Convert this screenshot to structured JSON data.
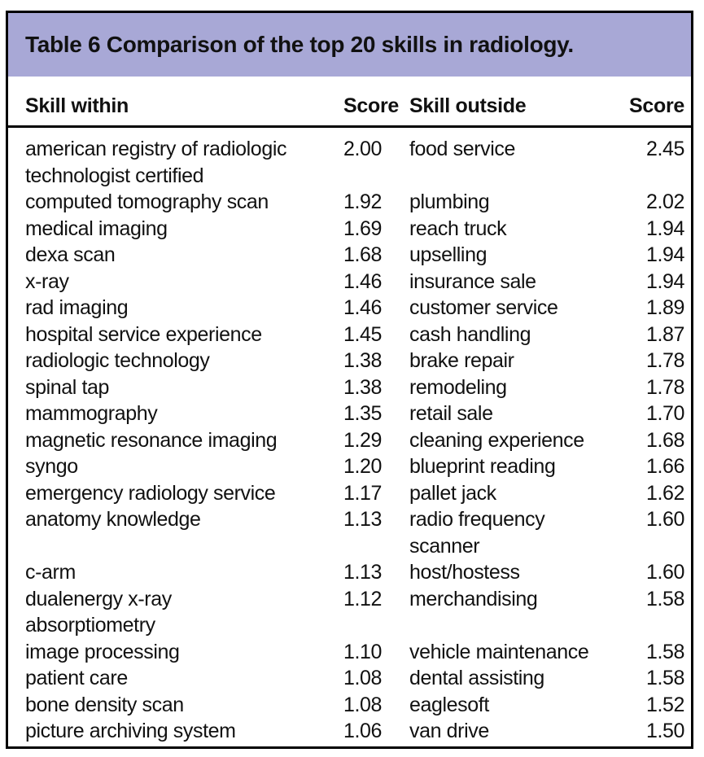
{
  "table": {
    "title": "Table 6 Comparison of the top 20 skills in radiology.",
    "columns": [
      "Skill within",
      "Score",
      "Skill outside",
      "Score"
    ],
    "rows": [
      {
        "skill_within": "american registry of radiologic\ntechnologist certified",
        "score_within": "2.00",
        "skill_outside": "food service",
        "score_outside": "2.45"
      },
      {
        "skill_within": "computed tomography scan",
        "score_within": "1.92",
        "skill_outside": "plumbing",
        "score_outside": "2.02"
      },
      {
        "skill_within": "medical imaging",
        "score_within": "1.69",
        "skill_outside": "reach truck",
        "score_outside": "1.94"
      },
      {
        "skill_within": "dexa scan",
        "score_within": "1.68",
        "skill_outside": "upselling",
        "score_outside": "1.94"
      },
      {
        "skill_within": "x-ray",
        "score_within": "1.46",
        "skill_outside": "insurance sale",
        "score_outside": "1.94"
      },
      {
        "skill_within": "rad imaging",
        "score_within": "1.46",
        "skill_outside": "customer service",
        "score_outside": "1.89"
      },
      {
        "skill_within": "hospital service experience",
        "score_within": "1.45",
        "skill_outside": "cash handling",
        "score_outside": "1.87"
      },
      {
        "skill_within": "radiologic technology",
        "score_within": "1.38",
        "skill_outside": "brake repair",
        "score_outside": "1.78"
      },
      {
        "skill_within": "spinal tap",
        "score_within": "1.38",
        "skill_outside": "remodeling",
        "score_outside": "1.78"
      },
      {
        "skill_within": "mammography",
        "score_within": "1.35",
        "skill_outside": "retail sale",
        "score_outside": "1.70"
      },
      {
        "skill_within": "magnetic resonance imaging",
        "score_within": "1.29",
        "skill_outside": "cleaning experience",
        "score_outside": "1.68"
      },
      {
        "skill_within": "syngo",
        "score_within": "1.20",
        "skill_outside": "blueprint reading",
        "score_outside": "1.66"
      },
      {
        "skill_within": "emergency radiology service",
        "score_within": "1.17",
        "skill_outside": "pallet jack",
        "score_outside": "1.62"
      },
      {
        "skill_within": "anatomy knowledge",
        "score_within": "1.13",
        "skill_outside": "radio frequency\nscanner",
        "score_outside": "1.60"
      },
      {
        "skill_within": "c-arm",
        "score_within": "1.13",
        "skill_outside": "host/hostess",
        "score_outside": "1.60"
      },
      {
        "skill_within": "dualenergy x-ray\nabsorptiometry",
        "score_within": "1.12",
        "skill_outside": "merchandising",
        "score_outside": "1.58"
      },
      {
        "skill_within": "image processing",
        "score_within": "1.10",
        "skill_outside": "vehicle maintenance",
        "score_outside": "1.58"
      },
      {
        "skill_within": "patient care",
        "score_within": "1.08",
        "skill_outside": "dental assisting",
        "score_outside": "1.58"
      },
      {
        "skill_within": "bone density scan",
        "score_within": "1.08",
        "skill_outside": "eaglesoft",
        "score_outside": "1.52"
      },
      {
        "skill_within": "picture archiving system",
        "score_within": "1.06",
        "skill_outside": "van drive",
        "score_outside": "1.50"
      }
    ]
  },
  "colors": {
    "header_band": "#a8a8d6",
    "border": "#000000",
    "text": "#111111"
  }
}
